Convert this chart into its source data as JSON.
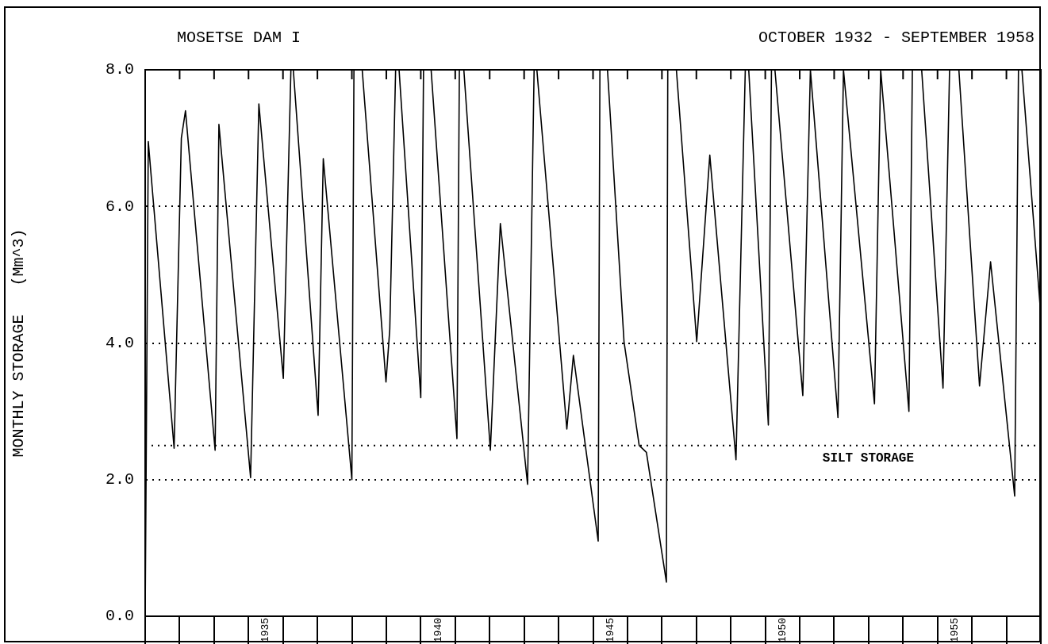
{
  "chart_data": {
    "type": "line",
    "title": "MOSETSE DAM I",
    "subtitle": "OCTOBER 1932 - SEPTEMBER 1958",
    "ylabel": "MONTHLY STORAGE   (Mm^3)",
    "x": [
      1931.5,
      1931.59,
      1932.34,
      1932.55,
      1932.67,
      1933.53,
      1933.64,
      1934.56,
      1934.8,
      1935.51,
      1935.73,
      1935.8,
      1936.52,
      1936.67,
      1937.5,
      1937.56,
      1937.8,
      1938.49,
      1938.6,
      1938.77,
      1938.87,
      1939.5,
      1939.58,
      1939.8,
      1940.55,
      1940.62,
      1940.75,
      1941.52,
      1941.81,
      1942.6,
      1942.79,
      1942.87,
      1943.74,
      1943.93,
      1944.28,
      1944.65,
      1944.7,
      1944.92,
      1945.4,
      1945.84,
      1946.05,
      1946.63,
      1946.67,
      1946.92,
      1947.51,
      1947.89,
      1948.65,
      1948.92,
      1949.02,
      1949.59,
      1949.68,
      1949.78,
      1950.59,
      1950.81,
      1951.61,
      1951.77,
      1952.67,
      1952.85,
      1953.67,
      1953.77,
      1954.04,
      1954.66,
      1954.85,
      1955.12,
      1955.72,
      1956.04,
      1956.74,
      1956.85,
      1956.95,
      1957.5
    ],
    "series": [
      {
        "color": "#000000",
        "values": [
          0,
          6.95,
          2.46,
          7.0,
          7.4,
          2.43,
          7.2,
          2.03,
          7.5,
          3.48,
          8,
          8,
          2.94,
          6.7,
          2.0,
          8,
          8,
          3.43,
          4.2,
          8,
          8,
          3.2,
          8,
          8,
          2.6,
          8,
          8,
          2.43,
          5.75,
          1.93,
          8,
          8,
          2.74,
          3.82,
          2.49,
          1.1,
          8,
          8,
          4.02,
          2.5,
          2.4,
          0.5,
          8,
          8,
          4.02,
          6.75,
          2.29,
          8,
          8,
          2.8,
          8,
          8,
          3.23,
          8,
          2.91,
          8,
          3.11,
          8,
          3.0,
          8,
          8,
          3.34,
          8,
          8,
          3.37,
          5.19,
          1.76,
          8,
          8,
          4.4
        ]
      }
    ],
    "xlim": [
      1931.5,
      1957.5
    ],
    "xticks": [
      {
        "value": 1931.5,
        "label": null
      },
      {
        "value": 1932.5,
        "label": null
      },
      {
        "value": 1933.5,
        "label": null
      },
      {
        "value": 1934.5,
        "label": null
      },
      1935,
      {
        "value": 1935.5,
        "label": null
      },
      {
        "value": 1936.5,
        "label": null
      },
      {
        "value": 1937.5,
        "label": null
      },
      {
        "value": 1938.5,
        "label": null
      },
      {
        "value": 1939.5,
        "label": null
      },
      1940,
      {
        "value": 1940.5,
        "label": null
      },
      {
        "value": 1941.5,
        "label": null
      },
      {
        "value": 1942.5,
        "label": null
      },
      {
        "value": 1943.5,
        "label": null
      },
      {
        "value": 1944.5,
        "label": null
      },
      1945,
      {
        "value": 1945.5,
        "label": null
      },
      {
        "value": 1946.5,
        "label": null
      },
      {
        "value": 1947.5,
        "label": null
      },
      {
        "value": 1948.5,
        "label": null
      },
      {
        "value": 1949.5,
        "label": null
      },
      1950,
      {
        "value": 1950.5,
        "label": null
      },
      {
        "value": 1951.5,
        "label": null
      },
      {
        "value": 1952.5,
        "label": null
      },
      {
        "value": 1953.5,
        "label": null
      },
      {
        "value": 1954.5,
        "label": null
      },
      1955,
      {
        "value": 1955.5,
        "label": null
      },
      {
        "value": 1956.5,
        "label": null
      },
      {
        "value": 1957.5,
        "label": null
      }
    ],
    "ylim": [
      0,
      8
    ],
    "yticks": [
      {
        "value": 0,
        "label": "0.0"
      },
      {
        "value": 2,
        "label": "2.0"
      },
      {
        "value": 4,
        "label": "4.0"
      },
      {
        "value": 6,
        "label": "6.0"
      },
      {
        "value": 8,
        "label": "8.0"
      }
    ],
    "grid": "y",
    "legend": false,
    "marker": "none",
    "line_style": "solid",
    "ref_lines": [
      {
        "axis": "y",
        "value": 2.5,
        "label": "SILT STORAGE",
        "line_style": "dotted"
      }
    ]
  }
}
